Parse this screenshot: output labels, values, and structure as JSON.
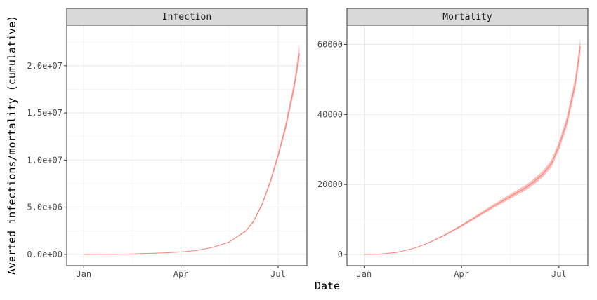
{
  "chart_data": {
    "type": "area",
    "xlabel": "Date",
    "ylabel": "Averted infections/mortality (cumulative)",
    "x_ticks": [
      "Jan",
      "Apr",
      "Jul"
    ],
    "x_tick_values": [
      "2020-01-01",
      "2020-04-01",
      "2020-07-01"
    ],
    "xlim": [
      "2019-12-16",
      "2020-07-28"
    ],
    "grid": true,
    "legend": "none",
    "ribbon_color": "#f8766d",
    "line_color": "#f8766d",
    "panels": [
      {
        "strip": "Infection",
        "ylim": [
          -1200000,
          24300000
        ],
        "y_ticks": [
          0,
          5000000,
          10000000,
          15000000,
          20000000
        ],
        "y_tick_labels": [
          "0.0e+00",
          "5.0e+06",
          "1.0e+07",
          "1.5e+07",
          "2.0e+07"
        ],
        "x": [
          "2020-01-01",
          "2020-01-16",
          "2020-02-01",
          "2020-02-16",
          "2020-03-01",
          "2020-03-16",
          "2020-04-01",
          "2020-04-16",
          "2020-05-01",
          "2020-05-16",
          "2020-06-01",
          "2020-06-08",
          "2020-06-16",
          "2020-06-24",
          "2020-07-01",
          "2020-07-08",
          "2020-07-16",
          "2020-07-21"
        ],
        "y": [
          0,
          5000,
          20000,
          50000,
          100000,
          160000,
          250000,
          420000,
          750000,
          1300000,
          2500000,
          3500000,
          5300000,
          7800000,
          10500000,
          13500000,
          17800000,
          21300000
        ],
        "lower": [
          0,
          4800,
          19000,
          48000,
          96000,
          154000,
          242000,
          407000,
          727000,
          1260000,
          2420000,
          3390000,
          5140000,
          7570000,
          10180000,
          13080000,
          17240000,
          20600000
        ],
        "upper": [
          0,
          5200,
          21000,
          52000,
          104000,
          166000,
          258000,
          433000,
          773000,
          1340000,
          2580000,
          3610000,
          5460000,
          8030000,
          10820000,
          13920000,
          18360000,
          22300000
        ]
      },
      {
        "strip": "Mortality",
        "ylim": [
          -3200,
          65500
        ],
        "y_ticks": [
          0,
          20000,
          40000,
          60000
        ],
        "y_tick_labels": [
          "0",
          "20000",
          "40000",
          "60000"
        ],
        "x": [
          "2020-01-01",
          "2020-01-16",
          "2020-02-01",
          "2020-02-16",
          "2020-03-01",
          "2020-03-16",
          "2020-04-01",
          "2020-04-16",
          "2020-05-01",
          "2020-05-16",
          "2020-06-01",
          "2020-06-08",
          "2020-06-16",
          "2020-06-24",
          "2020-07-01",
          "2020-07-08",
          "2020-07-16",
          "2020-07-21"
        ],
        "y": [
          0,
          100,
          600,
          1700,
          3300,
          5500,
          8200,
          11000,
          13800,
          16500,
          19300,
          20900,
          23000,
          26000,
          31000,
          37500,
          48500,
          59500
        ],
        "lower": [
          0,
          95,
          575,
          1630,
          3170,
          5280,
          7870,
          10560,
          13250,
          15840,
          18530,
          20060,
          22080,
          24960,
          29760,
          36000,
          46560,
          57100
        ],
        "upper": [
          0,
          105,
          625,
          1770,
          3430,
          5720,
          8530,
          11440,
          14350,
          17160,
          20070,
          21740,
          23920,
          27040,
          32240,
          39000,
          50440,
          61900
        ]
      }
    ]
  }
}
